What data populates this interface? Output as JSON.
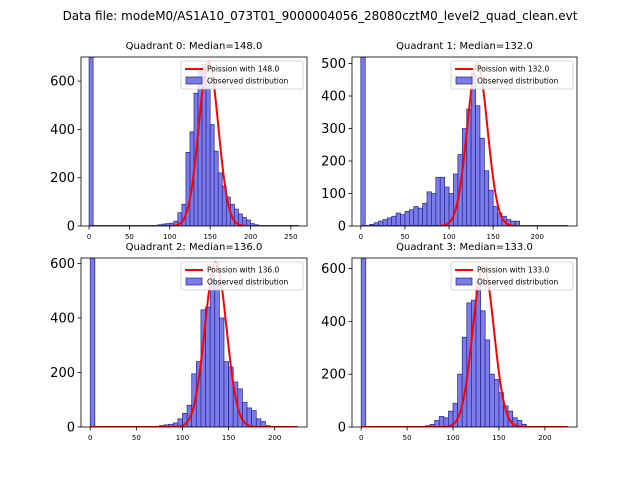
{
  "suptitle": "Data file: modeM0/AS1A10_073T01_9000004056_28080cztM0_level2_quad_clean.evt",
  "legend": {
    "line_label_prefix": "Poission with ",
    "hist_label": "Observed distribution"
  },
  "colors": {
    "bars_fill": "#7b7bea",
    "bars_edge": "#26268c",
    "poisson_line": "#ff0000"
  },
  "chart_data": [
    {
      "type": "bar",
      "title": "Quadrant 0: Median=148.0",
      "median": 148.0,
      "bin_width": 5,
      "xlim": [
        -10,
        270
      ],
      "ylim": [
        0,
        700
      ],
      "xticks": [
        0,
        50,
        100,
        150,
        200,
        250
      ],
      "yticks": [
        0,
        200,
        400,
        600
      ],
      "zero_bin_count": 700,
      "bins_start": 85,
      "counts": [
        5,
        8,
        10,
        12,
        20,
        55,
        90,
        305,
        390,
        550,
        640,
        670,
        600,
        420,
        310,
        220,
        165,
        120,
        90,
        70,
        50,
        35,
        25,
        10,
        5
      ],
      "poisson_curve": {
        "mean": 148.0,
        "peak": 680
      }
    },
    {
      "type": "bar",
      "title": "Quadrant 1: Median=132.0",
      "median": 132.0,
      "bin_width": 5,
      "xlim": [
        -10,
        245
      ],
      "ylim": [
        0,
        520
      ],
      "xticks": [
        0,
        50,
        100,
        150,
        200
      ],
      "yticks": [
        0,
        100,
        200,
        300,
        400,
        500
      ],
      "zero_bin_count": 520,
      "bins_start": 10,
      "counts": [
        5,
        10,
        15,
        20,
        25,
        30,
        40,
        35,
        45,
        50,
        60,
        55,
        70,
        105,
        100,
        150,
        150,
        120,
        100,
        160,
        220,
        300,
        360,
        470,
        370,
        270,
        170,
        110,
        60,
        40,
        30,
        20,
        15,
        15
      ],
      "poisson_curve": {
        "mean": 132.0,
        "peak": 500
      }
    },
    {
      "type": "bar",
      "title": "Quadrant 2: Median=136.0",
      "median": 136.0,
      "bin_width": 5,
      "xlim": [
        -10,
        235
      ],
      "ylim": [
        0,
        620
      ],
      "xticks": [
        0,
        50,
        100,
        150,
        200
      ],
      "yticks": [
        0,
        200,
        400,
        600
      ],
      "zero_bin_count": 620,
      "bins_start": 75,
      "counts": [
        5,
        8,
        10,
        15,
        30,
        50,
        80,
        195,
        240,
        430,
        440,
        560,
        530,
        400,
        240,
        220,
        165,
        140,
        90,
        70,
        60,
        30,
        20,
        5
      ],
      "poisson_curve": {
        "mean": 136.0,
        "peak": 605
      }
    },
    {
      "type": "bar",
      "title": "Quadrant 3: Median=133.0",
      "median": 133.0,
      "bin_width": 5,
      "xlim": [
        -10,
        235
      ],
      "ylim": [
        0,
        640
      ],
      "xticks": [
        0,
        50,
        100,
        150,
        200
      ],
      "yticks": [
        0,
        200,
        400,
        600
      ],
      "zero_bin_count": 640,
      "bins_start": 70,
      "counts": [
        5,
        10,
        25,
        40,
        35,
        60,
        90,
        200,
        340,
        470,
        480,
        560,
        440,
        330,
        200,
        180,
        130,
        80,
        60,
        35,
        25,
        10
      ],
      "poisson_curve": {
        "mean": 133.0,
        "peak": 610
      }
    }
  ]
}
